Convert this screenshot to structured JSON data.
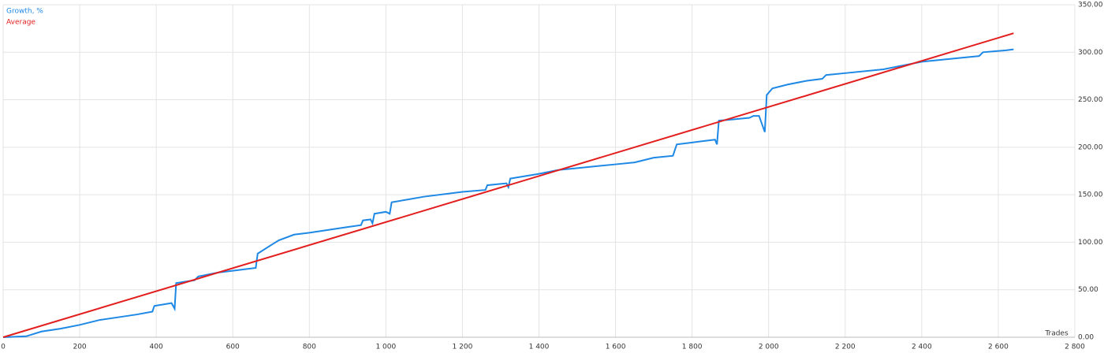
{
  "chart_data": {
    "type": "line",
    "x_label": "Trades",
    "series": [
      {
        "name": "Growth, %",
        "color": "#1e88e5",
        "x": [
          0,
          60,
          100,
          150,
          200,
          250,
          300,
          350,
          390,
          395,
          440,
          448,
          452,
          500,
          510,
          560,
          600,
          660,
          665,
          700,
          720,
          760,
          800,
          850,
          900,
          935,
          940,
          960,
          965,
          970,
          1000,
          1010,
          1015,
          1100,
          1200,
          1260,
          1265,
          1315,
          1320,
          1325,
          1400,
          1450,
          1500,
          1600,
          1650,
          1700,
          1750,
          1755,
          1760,
          1800,
          1860,
          1865,
          1870,
          1900,
          1950,
          1960,
          1975,
          1990,
          1995,
          2010,
          2050,
          2100,
          2140,
          2150,
          2200,
          2300,
          2400,
          2500,
          2550,
          2560,
          2620,
          2640
        ],
        "values": [
          0,
          1,
          6,
          9,
          13,
          18,
          21,
          24,
          27,
          33,
          36,
          30,
          57,
          60,
          64,
          68,
          70,
          73,
          88,
          97,
          102,
          108,
          110,
          113,
          116,
          118,
          123,
          124,
          120,
          130,
          132,
          130,
          142,
          148,
          153,
          155,
          160,
          162,
          158,
          167,
          172,
          176,
          178,
          182,
          184,
          189,
          191,
          197,
          203,
          205,
          208,
          203,
          228,
          229,
          231,
          233,
          233,
          216,
          255,
          262,
          266,
          270,
          272,
          276,
          278,
          282,
          290,
          294,
          296,
          300,
          302,
          303
        ]
      },
      {
        "name": "Average",
        "color": "#e31e1e",
        "x": [
          0,
          2640
        ],
        "values": [
          0,
          320
        ]
      }
    ],
    "xlim": [
      0,
      2800
    ],
    "xticks": [
      0,
      200,
      400,
      600,
      800,
      {
        "value": 1000,
        "label": "1 000"
      },
      {
        "value": 1200,
        "label": "1 200"
      },
      {
        "value": 1400,
        "label": "1 400"
      },
      {
        "value": 1600,
        "label": "1 600"
      },
      {
        "value": 1800,
        "label": "1 800"
      },
      {
        "value": 2000,
        "label": "2 000"
      },
      {
        "value": 2200,
        "label": "2 200"
      },
      {
        "value": 2400,
        "label": "2 400"
      },
      {
        "value": 2600,
        "label": "2 600"
      },
      {
        "value": 2800,
        "label": "2 800"
      }
    ],
    "ylim": [
      0,
      350
    ],
    "yticks": [
      {
        "value": 0,
        "label": "0.00"
      },
      {
        "value": 50,
        "label": "50.00"
      },
      {
        "value": 100,
        "label": "100.00"
      },
      {
        "value": 150,
        "label": "150.00"
      },
      {
        "value": 200,
        "label": "200.00"
      },
      {
        "value": 250,
        "label": "250.00"
      },
      {
        "value": 300,
        "label": "300.00"
      },
      {
        "value": 350,
        "label": "350.00"
      }
    ],
    "grid": true
  }
}
